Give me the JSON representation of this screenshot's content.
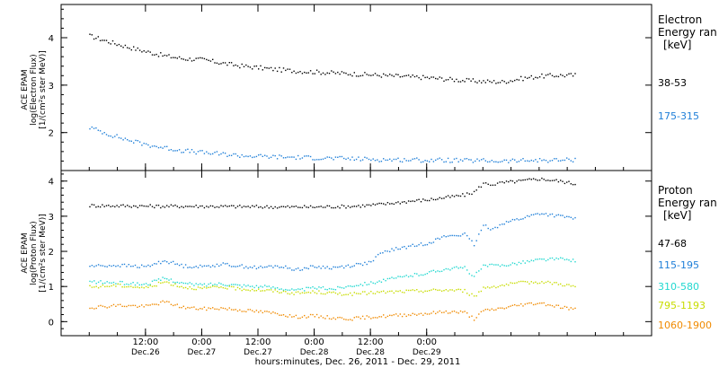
{
  "chart_data": [
    {
      "type": "scatter",
      "panel": "electron",
      "ylabel_lines": [
        "ACE EPAM",
        "log(Electron Flux)",
        "[1/(cm²s ster MeV)]"
      ],
      "legend_title_lines": [
        "Electron",
        "Energy ran",
        "[keV]"
      ],
      "ylim": [
        1.2,
        4.7
      ],
      "yticks": [
        2,
        3,
        4
      ],
      "series": [
        {
          "name": "38-53",
          "color": "#000000",
          "points": [
            [
              0,
              4.05
            ],
            [
              4,
              3.93
            ],
            [
              8,
              3.82
            ],
            [
              12,
              3.72
            ],
            [
              16,
              3.63
            ],
            [
              20,
              3.57
            ],
            [
              24,
              3.55
            ],
            [
              28,
              3.48
            ],
            [
              32,
              3.42
            ],
            [
              36,
              3.38
            ],
            [
              40,
              3.34
            ],
            [
              44,
              3.31
            ],
            [
              48,
              3.29
            ],
            [
              52,
              3.27
            ],
            [
              56,
              3.25
            ],
            [
              60,
              3.23
            ],
            [
              64,
              3.21
            ],
            [
              68,
              3.19
            ],
            [
              72,
              3.17
            ],
            [
              76,
              3.14
            ],
            [
              80,
              3.11
            ],
            [
              84,
              3.09
            ],
            [
              88,
              3.08
            ],
            [
              92,
              3.15
            ],
            [
              96,
              3.2
            ],
            [
              100,
              3.22
            ],
            [
              104,
              3.22
            ]
          ]
        },
        {
          "name": "175-315",
          "color": "#1f7fd8",
          "points": [
            [
              0,
              2.12
            ],
            [
              4,
              1.98
            ],
            [
              8,
              1.86
            ],
            [
              12,
              1.76
            ],
            [
              16,
              1.69
            ],
            [
              20,
              1.63
            ],
            [
              24,
              1.59
            ],
            [
              28,
              1.56
            ],
            [
              32,
              1.53
            ],
            [
              36,
              1.51
            ],
            [
              40,
              1.5
            ],
            [
              44,
              1.49
            ],
            [
              48,
              1.48
            ],
            [
              52,
              1.47
            ],
            [
              56,
              1.46
            ],
            [
              60,
              1.45
            ],
            [
              64,
              1.44
            ],
            [
              68,
              1.44
            ],
            [
              72,
              1.43
            ],
            [
              76,
              1.43
            ],
            [
              80,
              1.42
            ],
            [
              84,
              1.42
            ],
            [
              88,
              1.41
            ],
            [
              92,
              1.42
            ],
            [
              96,
              1.43
            ],
            [
              100,
              1.43
            ],
            [
              104,
              1.44
            ]
          ]
        }
      ]
    },
    {
      "type": "scatter",
      "panel": "proton",
      "ylabel_lines": [
        "ACE EPAM",
        "log(Proton Flux)",
        "[1/(cm²s ster MeV)]"
      ],
      "legend_title_lines": [
        "Proton",
        "Energy ran",
        "[keV]"
      ],
      "ylim": [
        -0.4,
        4.3
      ],
      "yticks": [
        0,
        1,
        2,
        3,
        4
      ],
      "series": [
        {
          "name": "47-68",
          "color": "#000000",
          "points": [
            [
              0,
              3.32
            ],
            [
              8,
              3.31
            ],
            [
              16,
              3.3
            ],
            [
              24,
              3.3
            ],
            [
              32,
              3.29
            ],
            [
              40,
              3.28
            ],
            [
              48,
              3.28
            ],
            [
              56,
              3.3
            ],
            [
              60,
              3.33
            ],
            [
              64,
              3.38
            ],
            [
              68,
              3.44
            ],
            [
              72,
              3.48
            ],
            [
              76,
              3.55
            ],
            [
              80,
              3.62
            ],
            [
              82,
              3.7
            ],
            [
              84,
              3.95
            ],
            [
              86,
              3.92
            ],
            [
              88,
              3.97
            ],
            [
              92,
              4.02
            ],
            [
              96,
              4.08
            ],
            [
              100,
              4.02
            ],
            [
              104,
              3.93
            ]
          ]
        },
        {
          "name": "115-195",
          "color": "#1f7fd8",
          "points": [
            [
              0,
              1.6
            ],
            [
              6,
              1.62
            ],
            [
              12,
              1.58
            ],
            [
              16,
              1.75
            ],
            [
              20,
              1.6
            ],
            [
              24,
              1.58
            ],
            [
              28,
              1.65
            ],
            [
              32,
              1.6
            ],
            [
              36,
              1.55
            ],
            [
              40,
              1.6
            ],
            [
              44,
              1.5
            ],
            [
              48,
              1.58
            ],
            [
              52,
              1.55
            ],
            [
              56,
              1.62
            ],
            [
              60,
              1.7
            ],
            [
              62,
              1.95
            ],
            [
              64,
              2.05
            ],
            [
              68,
              2.15
            ],
            [
              72,
              2.25
            ],
            [
              76,
              2.45
            ],
            [
              80,
              2.5
            ],
            [
              82,
              2.2
            ],
            [
              84,
              2.75
            ],
            [
              86,
              2.65
            ],
            [
              88,
              2.82
            ],
            [
              92,
              2.95
            ],
            [
              96,
              3.1
            ],
            [
              100,
              3.02
            ],
            [
              104,
              2.95
            ]
          ]
        },
        {
          "name": "310-580",
          "color": "#22d8d0",
          "points": [
            [
              0,
              1.15
            ],
            [
              6,
              1.12
            ],
            [
              12,
              1.08
            ],
            [
              16,
              1.25
            ],
            [
              20,
              1.1
            ],
            [
              24,
              1.06
            ],
            [
              28,
              1.1
            ],
            [
              32,
              1.05
            ],
            [
              36,
              1.02
            ],
            [
              40,
              0.98
            ],
            [
              44,
              0.9
            ],
            [
              48,
              0.98
            ],
            [
              52,
              0.95
            ],
            [
              56,
              1.05
            ],
            [
              60,
              1.12
            ],
            [
              64,
              1.22
            ],
            [
              68,
              1.32
            ],
            [
              72,
              1.4
            ],
            [
              76,
              1.52
            ],
            [
              80,
              1.55
            ],
            [
              82,
              1.3
            ],
            [
              84,
              1.6
            ],
            [
              88,
              1.62
            ],
            [
              92,
              1.7
            ],
            [
              96,
              1.78
            ],
            [
              100,
              1.8
            ],
            [
              104,
              1.75
            ]
          ]
        },
        {
          "name": "795-1193",
          "color": "#c8dc00",
          "points": [
            [
              0,
              1.0
            ],
            [
              6,
              1.05
            ],
            [
              12,
              0.98
            ],
            [
              16,
              1.15
            ],
            [
              20,
              1.0
            ],
            [
              24,
              0.96
            ],
            [
              28,
              1.0
            ],
            [
              32,
              0.95
            ],
            [
              36,
              0.92
            ],
            [
              40,
              0.88
            ],
            [
              44,
              0.82
            ],
            [
              48,
              0.86
            ],
            [
              52,
              0.82
            ],
            [
              56,
              0.8
            ],
            [
              60,
              0.84
            ],
            [
              64,
              0.86
            ],
            [
              68,
              0.88
            ],
            [
              72,
              0.9
            ],
            [
              76,
              0.92
            ],
            [
              80,
              0.9
            ],
            [
              82,
              0.72
            ],
            [
              84,
              0.98
            ],
            [
              88,
              1.05
            ],
            [
              92,
              1.12
            ],
            [
              96,
              1.15
            ],
            [
              100,
              1.1
            ],
            [
              104,
              1.0
            ]
          ]
        },
        {
          "name": "1060-1900",
          "color": "#f08a00",
          "points": [
            [
              0,
              0.42
            ],
            [
              6,
              0.48
            ],
            [
              12,
              0.45
            ],
            [
              16,
              0.58
            ],
            [
              20,
              0.42
            ],
            [
              24,
              0.38
            ],
            [
              28,
              0.4
            ],
            [
              32,
              0.35
            ],
            [
              36,
              0.3
            ],
            [
              40,
              0.25
            ],
            [
              44,
              0.15
            ],
            [
              48,
              0.18
            ],
            [
              52,
              0.12
            ],
            [
              56,
              0.1
            ],
            [
              60,
              0.15
            ],
            [
              64,
              0.18
            ],
            [
              68,
              0.22
            ],
            [
              72,
              0.25
            ],
            [
              76,
              0.3
            ],
            [
              80,
              0.28
            ],
            [
              82,
              0.1
            ],
            [
              84,
              0.32
            ],
            [
              88,
              0.4
            ],
            [
              92,
              0.5
            ],
            [
              96,
              0.55
            ],
            [
              100,
              0.45
            ],
            [
              104,
              0.35
            ]
          ]
        }
      ]
    }
  ],
  "x_axis": {
    "xlim": [
      -6,
      120
    ],
    "major_ticks": [
      {
        "hour": 12,
        "time": "12:00",
        "date": "Dec.26"
      },
      {
        "hour": 24,
        "time": "0:00",
        "date": "Dec.27"
      },
      {
        "hour": 36,
        "time": "12:00",
        "date": "Dec.27"
      },
      {
        "hour": 48,
        "time": "0:00",
        "date": "Dec.28"
      },
      {
        "hour": 60,
        "time": "12:00",
        "date": "Dec.28"
      },
      {
        "hour": 72,
        "time": "0:00",
        "date": "Dec.29"
      }
    ],
    "xlabel": "hours:minutes, Dec. 26, 2011 - Dec. 29, 2011"
  }
}
